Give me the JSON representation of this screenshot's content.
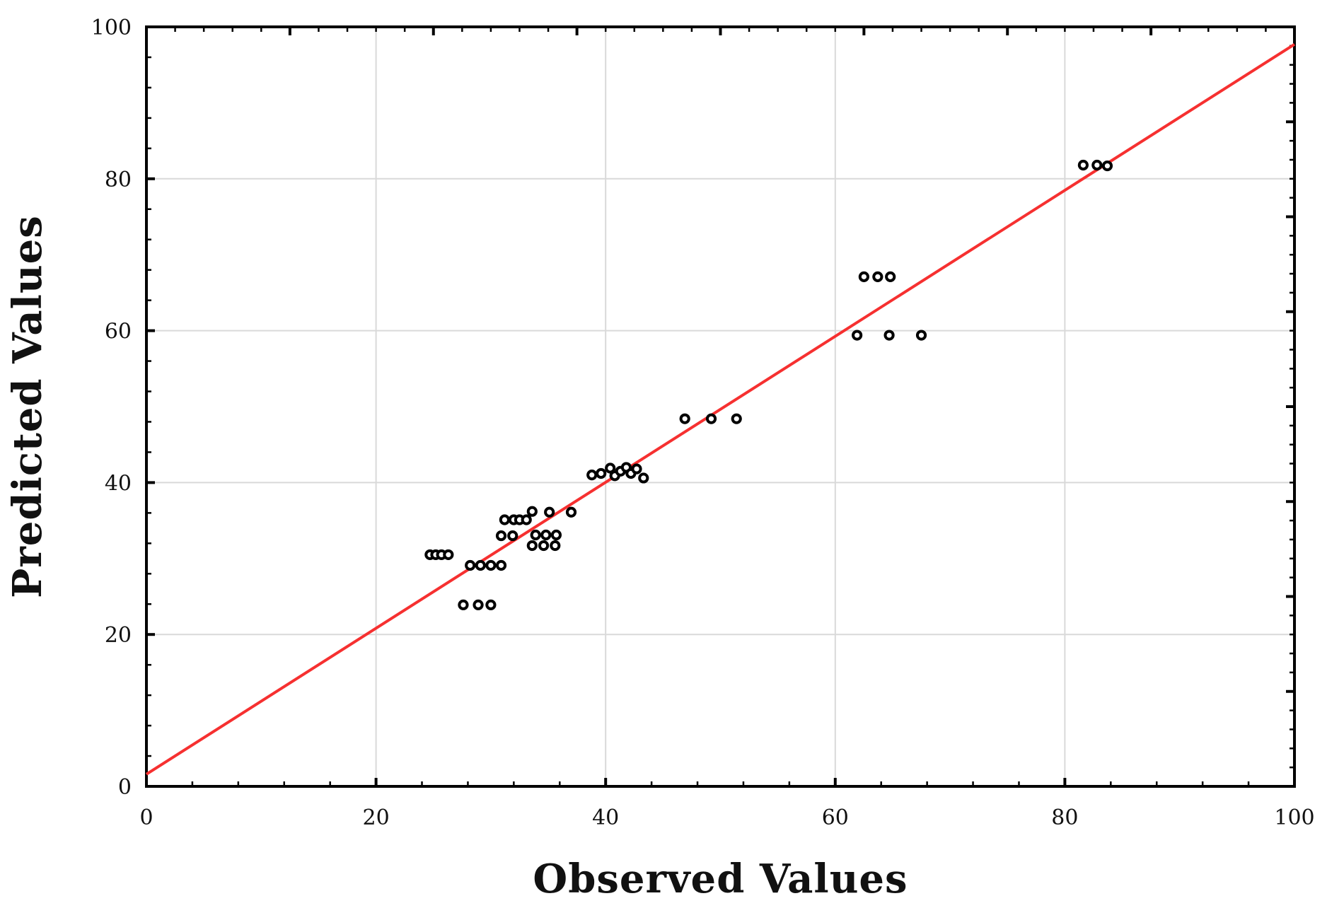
{
  "chart_data": {
    "type": "scatter",
    "title": "",
    "xlabel": "Observed Values",
    "ylabel": "Predicted Values",
    "xlim": [
      0,
      100
    ],
    "ylim": [
      0,
      100
    ],
    "x_major_ticks": [
      0,
      20,
      40,
      60,
      80,
      100
    ],
    "y_major_ticks": [
      0,
      20,
      40,
      60,
      80,
      100
    ],
    "x_tick_labels": [
      "0",
      "20",
      "40",
      "60",
      "80",
      "100"
    ],
    "y_tick_labels": [
      "0",
      "20",
      "40",
      "60",
      "80",
      "100"
    ],
    "minor_tick_step_primary_axes": 4,
    "secondary_axes_major_step": 12.5,
    "secondary_axes_minor_step": 2.5,
    "grid": true,
    "legend": "none",
    "colors": {
      "fit_line": "#f63030",
      "marker_stroke": "#000000",
      "marker_fill": "#ffffff",
      "gridline": "#d9d9d9",
      "frame": "#000000",
      "text": "#111111"
    },
    "fit_line": {
      "x1": 0,
      "y1": 1.6,
      "x2": 100,
      "y2": 97.7
    },
    "points": [
      [
        24.7,
        30.5
      ],
      [
        25.2,
        30.5
      ],
      [
        25.7,
        30.5
      ],
      [
        26.3,
        30.5
      ],
      [
        28.2,
        29.1
      ],
      [
        29.1,
        29.1
      ],
      [
        30.0,
        29.1
      ],
      [
        30.9,
        29.1
      ],
      [
        27.6,
        23.9
      ],
      [
        28.9,
        23.9
      ],
      [
        30.0,
        23.9
      ],
      [
        31.2,
        35.1
      ],
      [
        32.0,
        35.1
      ],
      [
        32.5,
        35.1
      ],
      [
        33.1,
        35.1
      ],
      [
        33.6,
        36.2
      ],
      [
        35.1,
        36.1
      ],
      [
        37.0,
        36.1
      ],
      [
        30.9,
        33.0
      ],
      [
        31.9,
        33.0
      ],
      [
        33.9,
        33.1
      ],
      [
        34.8,
        33.1
      ],
      [
        35.7,
        33.1
      ],
      [
        33.6,
        31.7
      ],
      [
        34.6,
        31.7
      ],
      [
        35.6,
        31.7
      ],
      [
        38.8,
        41.0
      ],
      [
        39.6,
        41.2
      ],
      [
        40.4,
        41.9
      ],
      [
        40.8,
        40.9
      ],
      [
        41.3,
        41.5
      ],
      [
        41.8,
        42.0
      ],
      [
        42.2,
        41.2
      ],
      [
        42.7,
        41.8
      ],
      [
        43.3,
        40.6
      ],
      [
        46.9,
        48.4
      ],
      [
        49.2,
        48.4
      ],
      [
        51.4,
        48.4
      ],
      [
        61.9,
        59.4
      ],
      [
        64.7,
        59.4
      ],
      [
        67.5,
        59.4
      ],
      [
        62.5,
        67.1
      ],
      [
        63.7,
        67.1
      ],
      [
        64.8,
        67.1
      ],
      [
        81.6,
        81.8
      ],
      [
        82.8,
        81.8
      ],
      [
        83.7,
        81.7
      ]
    ]
  }
}
